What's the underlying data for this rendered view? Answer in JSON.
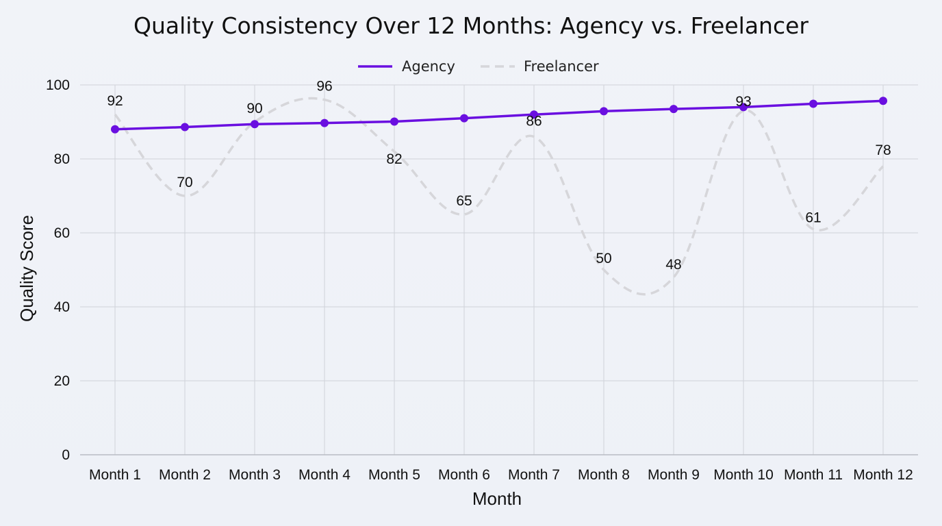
{
  "chart_data": {
    "type": "line",
    "title": "Quality Consistency Over 12 Months: Agency vs. Freelancer",
    "xlabel": "Month",
    "ylabel": "Quality Score",
    "categories": [
      "Month 1",
      "Month 2",
      "Month 3",
      "Month 4",
      "Month 5",
      "Month 6",
      "Month 7",
      "Month 8",
      "Month 9",
      "Month 10",
      "Month 11",
      "Month 12"
    ],
    "ylim": [
      0,
      100
    ],
    "yticks": [
      0,
      20,
      40,
      60,
      80,
      100
    ],
    "grid": true,
    "legend_position": "top-center",
    "series": [
      {
        "name": "Agency",
        "values": [
          88,
          88.6,
          89.4,
          89.7,
          90.1,
          91,
          92,
          92.9,
          93.5,
          94,
          94.9,
          95.7
        ],
        "color": "#6a0fe0",
        "style": "solid",
        "markers": true
      },
      {
        "name": "Freelancer",
        "values": [
          92,
          70,
          90,
          96,
          82,
          65,
          86,
          50,
          48,
          93,
          61,
          78
        ],
        "color": "#d6d6da",
        "style": "dashed",
        "markers": false,
        "smooth": true
      }
    ],
    "data_labels": {
      "series": "Freelancer",
      "values": [
        "92",
        "70",
        "90",
        "96",
        "82",
        "65",
        "86",
        "50",
        "48",
        "93",
        "61",
        "78"
      ]
    }
  }
}
